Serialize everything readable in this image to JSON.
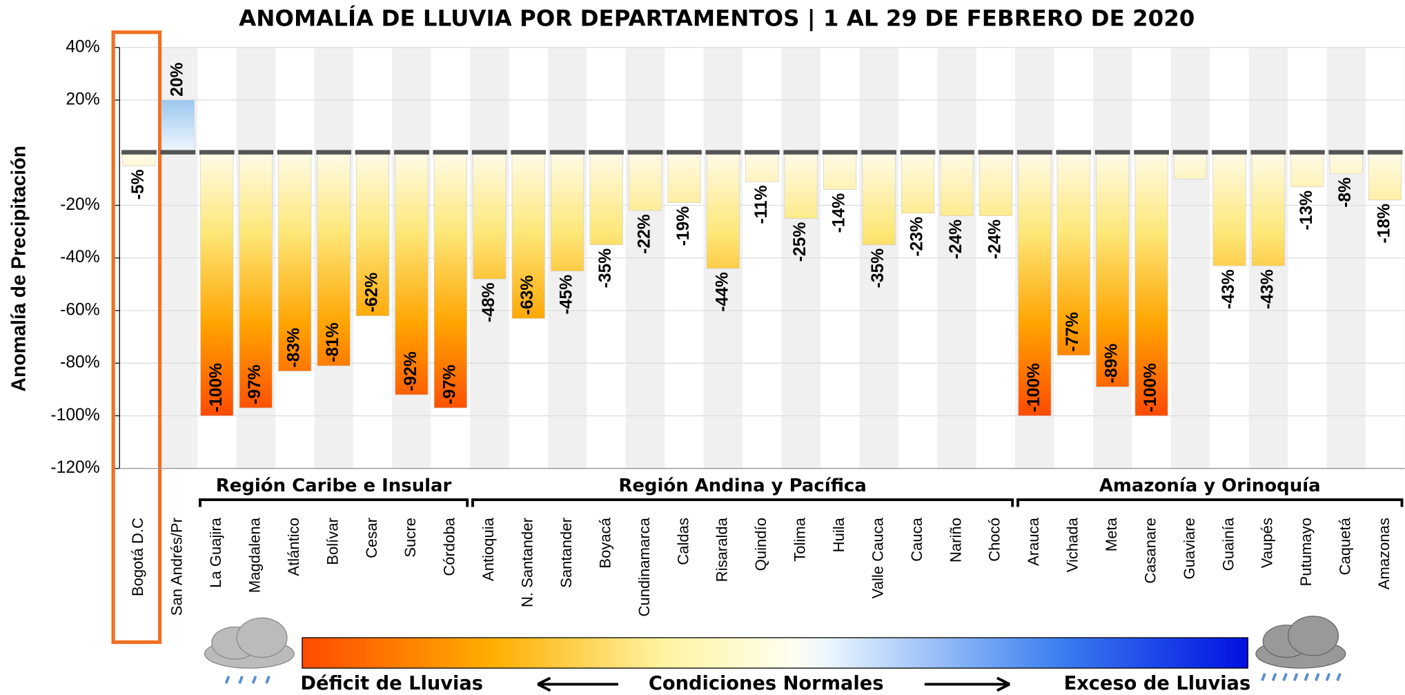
{
  "chart_data": {
    "type": "bar",
    "title": "ANOMALÍA DE LLUVIA POR DEPARTAMENTOS | 1 AL 29 DE FEBRERO DE 2020",
    "y_label": "Anomalía de Precipitación",
    "categories": [
      "Bogotá D.C",
      "San Andrés/Pr",
      "La Guajira",
      "Magdalena",
      "Atlántico",
      "Bolívar",
      "Cesar",
      "Sucre",
      "Córdoba",
      "Antioquia",
      "N. Santander",
      "Santander",
      "Boyacá",
      "Cundinamarca",
      "Caldas",
      "Risaralda",
      "Quindío",
      "Tolima",
      "Huila",
      "Valle Cauca",
      "Cauca",
      "Nariño",
      "Chocó",
      "Arauca",
      "Vichada",
      "Meta",
      "Casanare",
      "Guaviare",
      "Guainía",
      "Vaupés",
      "Putumayo",
      "Caquetá",
      "Amazonas"
    ],
    "values": [
      -5,
      20,
      -100,
      -97,
      -83,
      -81,
      -62,
      -92,
      -97,
      -48,
      -63,
      -45,
      -35,
      -22,
      -19,
      -44,
      -11,
      -25,
      -14,
      -35,
      -23,
      -24,
      -24,
      -100,
      -77,
      -89,
      -100,
      -10,
      -43,
      -43,
      -13,
      -8,
      -18
    ],
    "value_labels": [
      "-5%",
      "20%",
      "-100%",
      "-97%",
      "-83%",
      "-81%",
      "-62%",
      "-92%",
      "-97%",
      "-48%",
      "-63%",
      "-45%",
      "-35%",
      "-22%",
      "-19%",
      "-44%",
      "-11%",
      "-25%",
      "-14%",
      "-35%",
      "-23%",
      "-24%",
      "-24%",
      "-100%",
      "-77%",
      "-89%",
      "-100%",
      null,
      "-43%",
      "-43%",
      "-13%",
      "-8%",
      "-18%"
    ],
    "ylim": [
      -120,
      40
    ],
    "yticks": [
      {
        "value": -120,
        "label": "-120%"
      },
      {
        "value": -100,
        "label": "-100%"
      },
      {
        "value": -80,
        "label": "-80%"
      },
      {
        "value": -60,
        "label": "-60%"
      },
      {
        "value": -40,
        "label": "-40%"
      },
      {
        "value": -20,
        "label": "-20%"
      },
      {
        "value": 20,
        "label": "20%"
      },
      {
        "value": 40,
        "label": "40%"
      }
    ],
    "grid": true,
    "regions": [
      "Región Caribe e Insular",
      "Región Andina y Pacífica",
      "Amazonía y Orinoquía"
    ],
    "legend_labels": [
      "Déficit de Lluvias",
      "Condiciones Normales",
      "Exceso de Lluvias"
    ]
  }
}
